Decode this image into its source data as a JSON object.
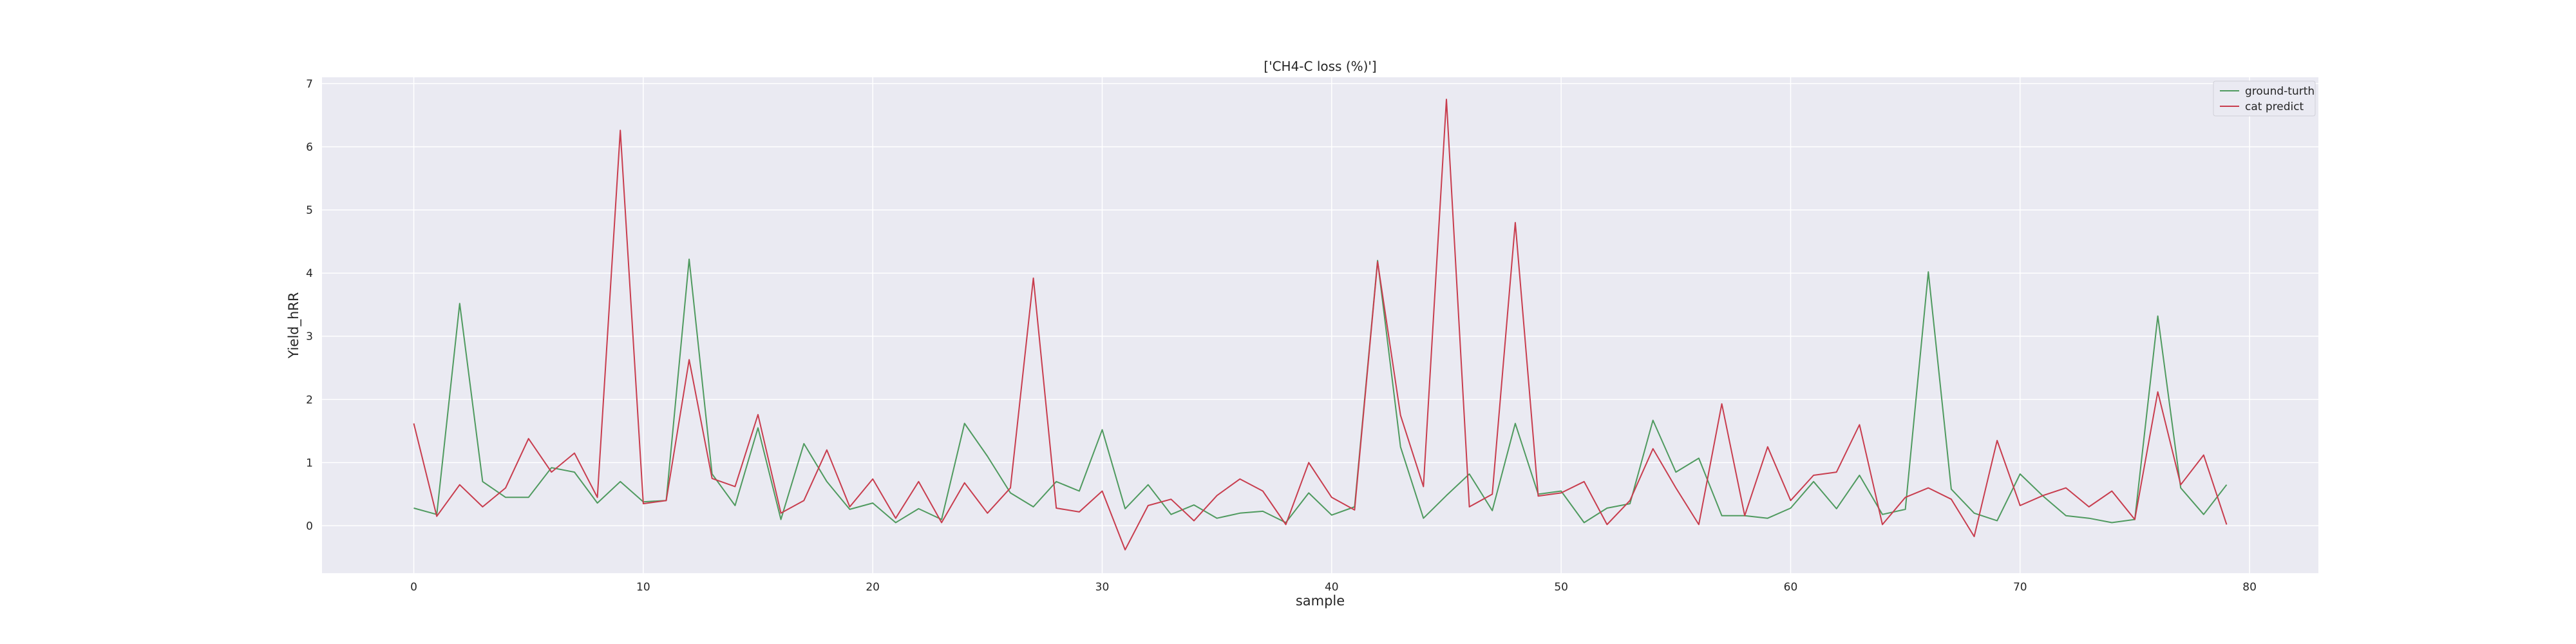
{
  "chart_data": {
    "type": "line",
    "title": "['CH4-C loss (%)']",
    "xlabel": "sample",
    "ylabel": "Yield_hRR",
    "xlim": [
      -4,
      83
    ],
    "ylim": [
      -0.75,
      7.1
    ],
    "xticks": [
      0,
      10,
      20,
      30,
      40,
      50,
      60,
      70,
      80
    ],
    "yticks": [
      0,
      1,
      2,
      3,
      4,
      5,
      6,
      7
    ],
    "grid": true,
    "legend_position": "top-right",
    "x": [
      0,
      1,
      2,
      3,
      4,
      5,
      6,
      7,
      8,
      9,
      10,
      11,
      12,
      13,
      14,
      15,
      16,
      17,
      18,
      19,
      20,
      21,
      22,
      23,
      24,
      25,
      26,
      27,
      28,
      29,
      30,
      31,
      32,
      33,
      34,
      35,
      36,
      37,
      38,
      39,
      40,
      41,
      42,
      43,
      44,
      45,
      46,
      47,
      48,
      49,
      50,
      51,
      52,
      53,
      54,
      55,
      56,
      57,
      58,
      59,
      60,
      61,
      62,
      63,
      64,
      65,
      66,
      67,
      68,
      69,
      70,
      71,
      72,
      73,
      74,
      75,
      76,
      77,
      78,
      79
    ],
    "series": [
      {
        "name": "ground-turth",
        "color": "#4f9a5f",
        "values": [
          0.28,
          0.18,
          3.52,
          0.7,
          0.45,
          0.45,
          0.92,
          0.85,
          0.36,
          0.7,
          0.38,
          0.4,
          4.22,
          0.82,
          0.32,
          1.55,
          0.1,
          1.3,
          0.7,
          0.26,
          0.36,
          0.05,
          0.27,
          0.1,
          1.62,
          1.1,
          0.52,
          0.3,
          0.7,
          0.55,
          1.52,
          0.27,
          0.65,
          0.18,
          0.33,
          0.12,
          0.2,
          0.23,
          0.05,
          0.52,
          0.17,
          0.3,
          4.2,
          1.25,
          0.12,
          0.48,
          0.82,
          0.24,
          1.62,
          0.5,
          0.55,
          0.05,
          0.28,
          0.35,
          1.67,
          0.85,
          1.07,
          0.16,
          0.16,
          0.12,
          0.28,
          0.7,
          0.27,
          0.8,
          0.18,
          0.26,
          4.02,
          0.58,
          0.2,
          0.08,
          0.82,
          0.47,
          0.16,
          0.12,
          0.05,
          0.1,
          3.32,
          0.6,
          0.18,
          0.65
        ]
      },
      {
        "name": "cat predict",
        "color": "#c83d4e",
        "values": [
          1.62,
          0.15,
          0.65,
          0.3,
          0.6,
          1.38,
          0.85,
          1.15,
          0.45,
          6.26,
          0.35,
          0.4,
          2.63,
          0.75,
          0.62,
          1.76,
          0.2,
          0.4,
          1.2,
          0.3,
          0.74,
          0.12,
          0.7,
          0.05,
          0.68,
          0.2,
          0.6,
          3.92,
          0.28,
          0.22,
          0.55,
          -0.38,
          0.32,
          0.42,
          0.08,
          0.48,
          0.74,
          0.55,
          0.02,
          1.0,
          0.45,
          0.25,
          4.18,
          1.75,
          0.62,
          6.75,
          0.3,
          0.5,
          4.8,
          0.47,
          0.52,
          0.7,
          0.02,
          0.4,
          1.22,
          0.6,
          0.02,
          1.93,
          0.16,
          1.25,
          0.4,
          0.8,
          0.85,
          1.6,
          0.02,
          0.45,
          0.6,
          0.42,
          -0.17,
          1.35,
          0.32,
          0.48,
          0.6,
          0.3,
          0.55,
          0.1,
          2.12,
          0.65,
          1.12,
          0.02
        ]
      }
    ]
  }
}
